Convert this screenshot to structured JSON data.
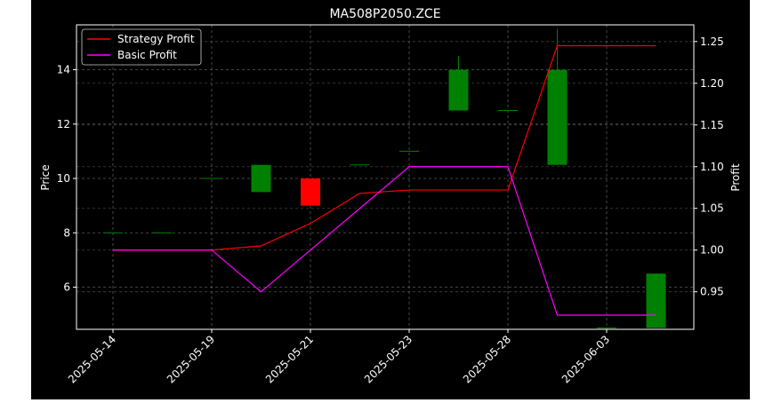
{
  "chart_data": {
    "type": "candlestick",
    "title": "MA508P2050.ZCE",
    "xlabel": "",
    "ylabel_left": "Price",
    "ylabel_right": "Profit",
    "grid": true,
    "legend_position": "top-left",
    "x_ticks": [
      {
        "label": "2025-05-14",
        "index": 0
      },
      {
        "label": "2025-05-19",
        "index": 2
      },
      {
        "label": "2025-05-21",
        "index": 4
      },
      {
        "label": "2025-05-23",
        "index": 6
      },
      {
        "label": "2025-05-28",
        "index": 8
      },
      {
        "label": "2025-06-03",
        "index": 10
      }
    ],
    "price_axis": {
      "ylim": [
        4.45,
        15.65
      ],
      "ticks": [
        6,
        8,
        10,
        12,
        14
      ]
    },
    "profit_axis": {
      "ylim": [
        0.905,
        1.27
      ],
      "ticks": [
        0.95,
        1.0,
        1.05,
        1.1,
        1.15,
        1.2,
        1.25
      ]
    },
    "candles": [
      {
        "i": 0,
        "open": 8.0,
        "close": 8.0,
        "high": 8.0,
        "low": 8.0
      },
      {
        "i": 1,
        "open": 8.0,
        "close": 8.0,
        "high": 8.0,
        "low": 8.0
      },
      {
        "i": 2,
        "open": 10.0,
        "close": 10.0,
        "high": 10.0,
        "low": 10.0
      },
      {
        "i": 3,
        "open": 9.5,
        "close": 10.5,
        "high": 10.5,
        "low": 9.5
      },
      {
        "i": 4,
        "open": 10.0,
        "close": 9.0,
        "high": 10.0,
        "low": 9.0
      },
      {
        "i": 5,
        "open": 10.5,
        "close": 10.5,
        "high": 10.5,
        "low": 10.5
      },
      {
        "i": 6,
        "open": 11.0,
        "close": 11.0,
        "high": 11.0,
        "low": 11.0
      },
      {
        "i": 7,
        "open": 12.5,
        "close": 14.0,
        "high": 14.5,
        "low": 12.5
      },
      {
        "i": 8,
        "open": 12.5,
        "close": 12.5,
        "high": 12.5,
        "low": 12.5
      },
      {
        "i": 9,
        "open": 10.5,
        "close": 14.0,
        "high": 15.5,
        "low": 10.5
      },
      {
        "i": 10,
        "open": 4.5,
        "close": 4.5,
        "high": 4.5,
        "low": 4.5
      },
      {
        "i": 11,
        "open": 4.5,
        "close": 6.5,
        "high": 6.5,
        "low": 4.5
      }
    ],
    "series": [
      {
        "name": "Strategy Profit",
        "color": "#ff0000",
        "values": [
          1.0,
          1.0,
          1.0,
          1.005,
          1.032,
          1.068,
          1.072,
          1.072,
          1.072,
          1.245,
          1.245,
          1.245
        ]
      },
      {
        "name": "Basic Profit",
        "color": "#ff00ff",
        "values": [
          1.0,
          1.0,
          1.0,
          0.95,
          1.0,
          1.05,
          1.1,
          1.1,
          1.1,
          0.922,
          0.922,
          0.922
        ]
      }
    ],
    "colors": {
      "up": "#008000",
      "down": "#ff0000",
      "background": "#000000",
      "frame": "#ffffff",
      "grid": "#808080"
    }
  }
}
